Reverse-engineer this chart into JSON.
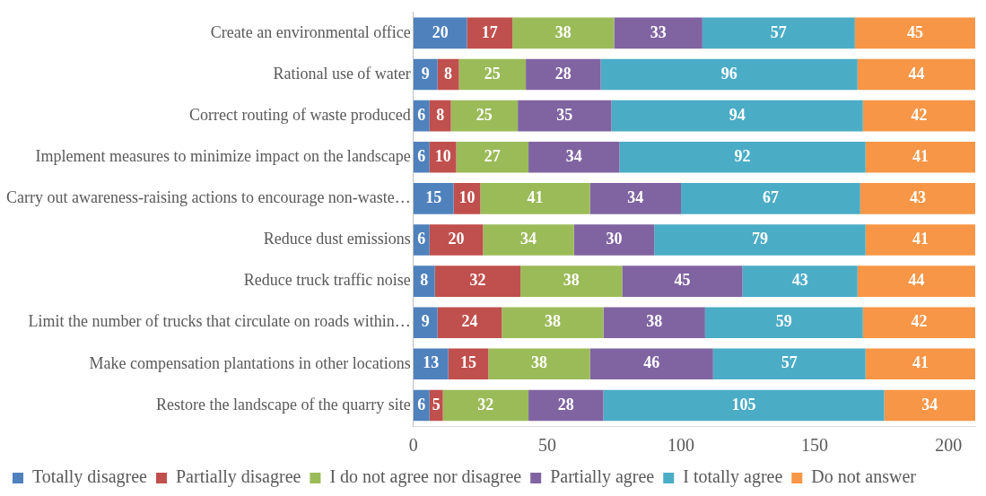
{
  "chart_data": {
    "type": "bar",
    "orientation": "horizontal",
    "stacked": true,
    "data_labels": true,
    "grid": false,
    "legend": "bottom",
    "categories": [
      "Create an environmental office",
      "Rational use of water",
      "Correct routing of waste produced",
      "Implement measures to minimize impact on the landscape",
      "Carry out awareness-raising actions to encourage non-waste…",
      "Reduce dust emissions",
      "Reduce truck traffic noise",
      "Limit the number of trucks that circulate on roads within…",
      "Make compensation plantations in other locations",
      "Restore the landscape of the quarry site"
    ],
    "xlim": [
      0,
      210
    ],
    "xticks": [
      0,
      50,
      100,
      150,
      200
    ],
    "series": [
      {
        "name": "Totally disagree",
        "color": "#4f81bd",
        "values": [
          20,
          9,
          6,
          6,
          15,
          6,
          8,
          9,
          13,
          6
        ]
      },
      {
        "name": "Partially disagree",
        "color": "#c0504d",
        "values": [
          17,
          8,
          8,
          10,
          10,
          20,
          32,
          24,
          15,
          5
        ]
      },
      {
        "name": "I do not agree nor disagree",
        "color": "#9bbb59",
        "values": [
          38,
          25,
          25,
          27,
          41,
          34,
          38,
          38,
          38,
          32
        ]
      },
      {
        "name": "Partially agree",
        "color": "#8064a2",
        "values": [
          33,
          28,
          35,
          34,
          34,
          30,
          45,
          38,
          46,
          28
        ]
      },
      {
        "name": "I totally agree",
        "color": "#4bacc6",
        "values": [
          57,
          96,
          94,
          92,
          67,
          79,
          43,
          59,
          57,
          105
        ]
      },
      {
        "name": "Do not answer",
        "color": "#f79646",
        "values": [
          45,
          44,
          42,
          41,
          43,
          41,
          44,
          42,
          41,
          34
        ]
      }
    ]
  }
}
